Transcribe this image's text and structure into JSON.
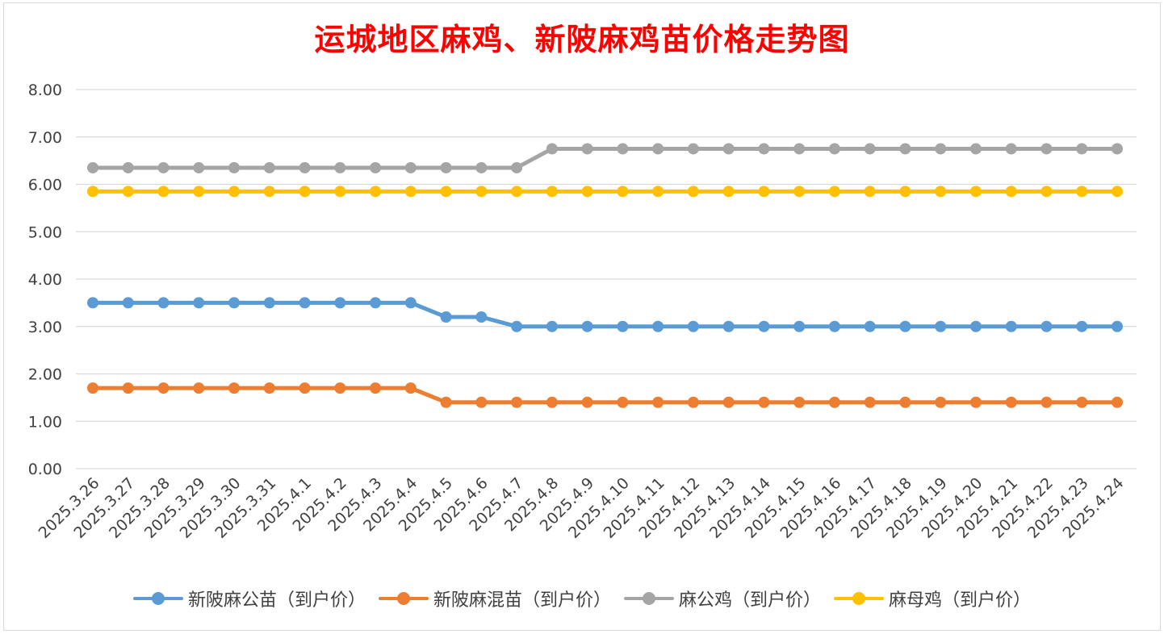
{
  "title": "运城地区麻鸡、新陂麻鸡苗价格走势图",
  "chart_data": {
    "type": "line",
    "title": "运城地区麻鸡、新陂麻鸡苗价格走势图",
    "xlabel": "",
    "ylabel": "",
    "ylim": [
      0,
      8
    ],
    "ytick_step": 1,
    "ytick_labels": [
      "0.00",
      "1.00",
      "2.00",
      "3.00",
      "4.00",
      "5.00",
      "6.00",
      "7.00",
      "8.00"
    ],
    "grid": true,
    "legend_position": "bottom",
    "categories": [
      "2025.3.26",
      "2025.3.27",
      "2025.3.28",
      "2025.3.29",
      "2025.3.30",
      "2025.3.31",
      "2025.4.1",
      "2025.4.2",
      "2025.4.3",
      "2025.4.4",
      "2025.4.5",
      "2025.4.6",
      "2025.4.7",
      "2025.4.8",
      "2025.4.9",
      "2025.4.10",
      "2025.4.11",
      "2025.4.12",
      "2025.4.13",
      "2025.4.14",
      "2025.4.15",
      "2025.4.16",
      "2025.4.17",
      "2025.4.18",
      "2025.4.19",
      "2025.4.20",
      "2025.4.21",
      "2025.4.22",
      "2025.4.23",
      "2025.4.24"
    ],
    "series": [
      {
        "name": "新陂麻公苗（到户价）",
        "color": "#5b9bd5",
        "values": [
          3.5,
          3.5,
          3.5,
          3.5,
          3.5,
          3.5,
          3.5,
          3.5,
          3.5,
          3.5,
          3.2,
          3.2,
          3.0,
          3.0,
          3.0,
          3.0,
          3.0,
          3.0,
          3.0,
          3.0,
          3.0,
          3.0,
          3.0,
          3.0,
          3.0,
          3.0,
          3.0,
          3.0,
          3.0,
          3.0
        ]
      },
      {
        "name": "新陂麻混苗（到户价）",
        "color": "#ed7d31",
        "values": [
          1.7,
          1.7,
          1.7,
          1.7,
          1.7,
          1.7,
          1.7,
          1.7,
          1.7,
          1.7,
          1.4,
          1.4,
          1.4,
          1.4,
          1.4,
          1.4,
          1.4,
          1.4,
          1.4,
          1.4,
          1.4,
          1.4,
          1.4,
          1.4,
          1.4,
          1.4,
          1.4,
          1.4,
          1.4,
          1.4
        ]
      },
      {
        "name": "麻公鸡（到户价）",
        "color": "#a5a5a5",
        "values": [
          6.35,
          6.35,
          6.35,
          6.35,
          6.35,
          6.35,
          6.35,
          6.35,
          6.35,
          6.35,
          6.35,
          6.35,
          6.35,
          6.75,
          6.75,
          6.75,
          6.75,
          6.75,
          6.75,
          6.75,
          6.75,
          6.75,
          6.75,
          6.75,
          6.75,
          6.75,
          6.75,
          6.75,
          6.75,
          6.75
        ]
      },
      {
        "name": "麻母鸡（到户价）",
        "color": "#ffc000",
        "values": [
          5.85,
          5.85,
          5.85,
          5.85,
          5.85,
          5.85,
          5.85,
          5.85,
          5.85,
          5.85,
          5.85,
          5.85,
          5.85,
          5.85,
          5.85,
          5.85,
          5.85,
          5.85,
          5.85,
          5.85,
          5.85,
          5.85,
          5.85,
          5.85,
          5.85,
          5.85,
          5.85,
          5.85,
          5.85,
          5.85
        ]
      }
    ]
  }
}
